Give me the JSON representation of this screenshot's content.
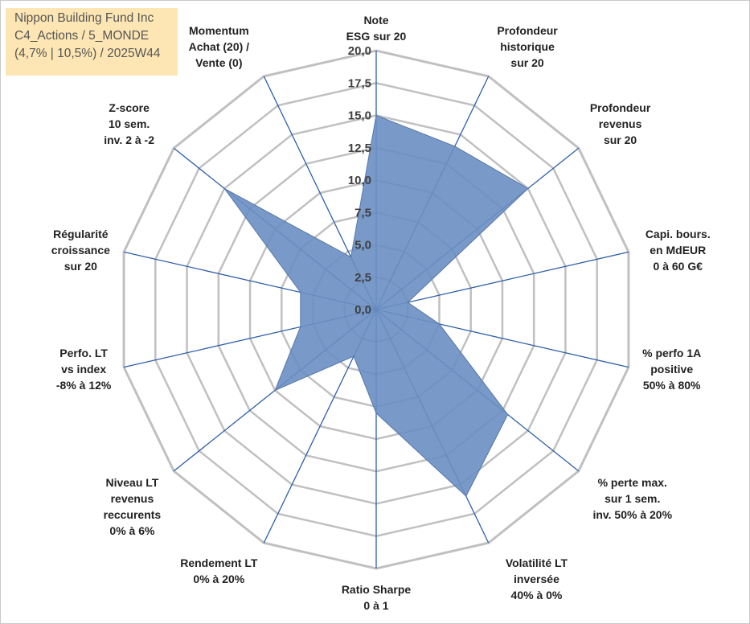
{
  "header": {
    "lines": [
      "Nippon Building Fund Inc",
      "C4_Actions / 5_MONDE",
      "(4,7% | 10,5%) / 2025W44"
    ],
    "background": "#fde6b3"
  },
  "chart_data": {
    "type": "radar",
    "rmin": 0,
    "rmax": 20,
    "ticks": [
      "0,0",
      "2,5",
      "5,0",
      "7,5",
      "10,0",
      "12,5",
      "15,0",
      "17,5",
      "20,0"
    ],
    "tick_values": [
      0,
      2.5,
      5,
      7.5,
      10,
      12.5,
      15,
      17.5,
      20
    ],
    "grid": true,
    "grid_color": "#c0c0c0",
    "spoke_color": "#2e5fa8",
    "fill_color": "#6a8fc2",
    "categories": [
      [
        "Note",
        "ESG sur 20"
      ],
      [
        "Profondeur",
        "historique",
        "sur 20"
      ],
      [
        "Profondeur",
        "revenus",
        "sur 20"
      ],
      [
        "Capi. bours.",
        "en MdEUR",
        "0 à 60 G€"
      ],
      [
        "% perfo 1A",
        "positive",
        "50% à 80%"
      ],
      [
        "% perte max.",
        "sur 1 sem.",
        "inv. 50% à 20%"
      ],
      [
        "Volatilité LT",
        "inversée",
        "40% à 0%"
      ],
      [
        "Ratio Sharpe",
        "0 à 1"
      ],
      [
        "Rendement LT",
        "0% à 20%"
      ],
      [
        "Niveau LT",
        "revenus",
        "reccurents",
        "0% à 6%"
      ],
      [
        "Perfo. LT",
        "vs index",
        "-8% à 12%"
      ],
      [
        "Régularité",
        "croissance",
        "sur 20"
      ],
      [
        "Z-score",
        "10 sem.",
        "inv. 2 à -2"
      ],
      [
        "Momentum",
        "Achat (20) /",
        "Vente (0)"
      ]
    ],
    "series": [
      {
        "values": [
          15,
          14,
          15,
          2.5,
          5,
          13,
          16,
          8,
          4,
          10,
          6,
          6,
          15,
          4.5
        ]
      }
    ]
  }
}
